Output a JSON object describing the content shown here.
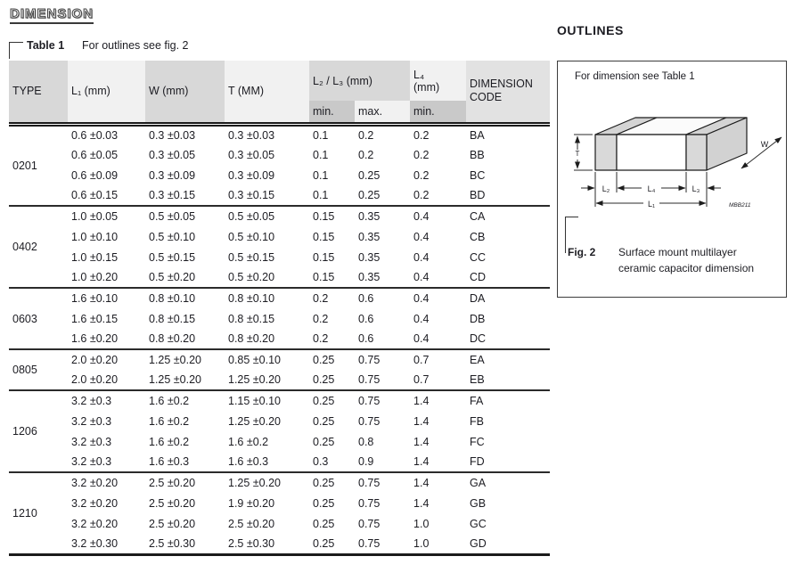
{
  "page": {
    "title": "DIMENSION",
    "callout": {
      "label": "Table 1",
      "note": "For outlines see fig. 2"
    }
  },
  "table": {
    "headers": {
      "type": "TYPE",
      "l1": "L₁ (mm)",
      "w": "W (mm)",
      "t": "T (MM)",
      "l2l3": "L₂ / L₃ (mm)",
      "l4": "L₄",
      "l4_unit": "(mm)",
      "min": "min.",
      "max": "max.",
      "min2": "min.",
      "code_line1": "DIMENSION",
      "code_line2": "CODE"
    },
    "groups": [
      {
        "type": "0201",
        "rows": [
          [
            "0.6 ±0.03",
            "0.3 ±0.03",
            "0.3 ±0.03",
            "0.1",
            "0.2",
            "0.2",
            "BA"
          ],
          [
            "0.6 ±0.05",
            "0.3 ±0.05",
            "0.3 ±0.05",
            "0.1",
            "0.2",
            "0.2",
            "BB"
          ],
          [
            "0.6 ±0.09",
            "0.3 ±0.09",
            "0.3 ±0.09",
            "0.1",
            "0.25",
            "0.2",
            "BC"
          ],
          [
            "0.6 ±0.15",
            "0.3 ±0.15",
            "0.3 ±0.15",
            "0.1",
            "0.25",
            "0.2",
            "BD"
          ]
        ]
      },
      {
        "type": "0402",
        "rows": [
          [
            "1.0 ±0.05",
            "0.5 ±0.05",
            "0.5 ±0.05",
            "0.15",
            "0.35",
            "0.4",
            "CA"
          ],
          [
            "1.0 ±0.10",
            "0.5 ±0.10",
            "0.5 ±0.10",
            "0.15",
            "0.35",
            "0.4",
            "CB"
          ],
          [
            "1.0 ±0.15",
            "0.5 ±0.15",
            "0.5 ±0.15",
            "0.15",
            "0.35",
            "0.4",
            "CC"
          ],
          [
            "1.0 ±0.20",
            "0.5 ±0.20",
            "0.5 ±0.20",
            "0.15",
            "0.35",
            "0.4",
            "CD"
          ]
        ]
      },
      {
        "type": "0603",
        "rows": [
          [
            "1.6 ±0.10",
            "0.8 ±0.10",
            "0.8 ±0.10",
            "0.2",
            "0.6",
            "0.4",
            "DA"
          ],
          [
            "1.6 ±0.15",
            "0.8 ±0.15",
            "0.8 ±0.15",
            "0.2",
            "0.6",
            "0.4",
            "DB"
          ],
          [
            "1.6 ±0.20",
            "0.8 ±0.20",
            "0.8 ±0.20",
            "0.2",
            "0.6",
            "0.4",
            "DC"
          ]
        ]
      },
      {
        "type": "0805",
        "rows": [
          [
            "2.0 ±0.20",
            "1.25 ±0.20",
            "0.85 ±0.10",
            "0.25",
            "0.75",
            "0.7",
            "EA"
          ],
          [
            "2.0 ±0.20",
            "1.25 ±0.20",
            "1.25 ±0.20",
            "0.25",
            "0.75",
            "0.7",
            "EB"
          ]
        ]
      },
      {
        "type": "1206",
        "rows": [
          [
            "3.2 ±0.3",
            "1.6 ±0.2",
            "1.15 ±0.10",
            "0.25",
            "0.75",
            "1.4",
            "FA"
          ],
          [
            "3.2 ±0.3",
            "1.6 ±0.2",
            "1.25 ±0.20",
            "0.25",
            "0.75",
            "1.4",
            "FB"
          ],
          [
            "3.2 ±0.3",
            "1.6 ±0.2",
            "1.6 ±0.2",
            "0.25",
            "0.8",
            "1.4",
            "FC"
          ],
          [
            "3.2 ±0.3",
            "1.6 ±0.3",
            "1.6 ±0.3",
            "0.3",
            "0.9",
            "1.4",
            "FD"
          ]
        ]
      },
      {
        "type": "1210",
        "rows": [
          [
            "3.2 ±0.20",
            "2.5 ±0.20",
            "1.25 ±0.20",
            "0.25",
            "0.75",
            "1.4",
            "GA"
          ],
          [
            "3.2 ±0.20",
            "2.5 ±0.20",
            "1.9 ±0.20",
            "0.25",
            "0.75",
            "1.4",
            "GB"
          ],
          [
            "3.2 ±0.20",
            "2.5 ±0.20",
            "2.5 ±0.20",
            "0.25",
            "0.75",
            "1.0",
            "GC"
          ],
          [
            "3.2 ±0.30",
            "2.5 ±0.30",
            "2.5 ±0.30",
            "0.25",
            "0.75",
            "1.0",
            "GD"
          ]
        ]
      }
    ]
  },
  "outlines": {
    "title": "OUTLINES",
    "note": "For dimension see Table 1",
    "figure": {
      "label_t": "T",
      "label_w": "W",
      "label_l1": "L₁",
      "label_l2": "L₂",
      "label_l3": "L₃",
      "label_l4": "L₄",
      "drawing_code": "MBB211"
    },
    "caption": {
      "fig": "Fig. 2",
      "line1": "Surface mount multilayer",
      "line2": "ceramic capacitor dimension"
    }
  },
  "colors": {
    "header_gray": "#d8d8d8",
    "header_light": "#f1f1f1",
    "header_darker": "#c9c9c9",
    "code_gray": "#e2e2e2",
    "rule": "#222222",
    "text": "#1c1c22"
  }
}
